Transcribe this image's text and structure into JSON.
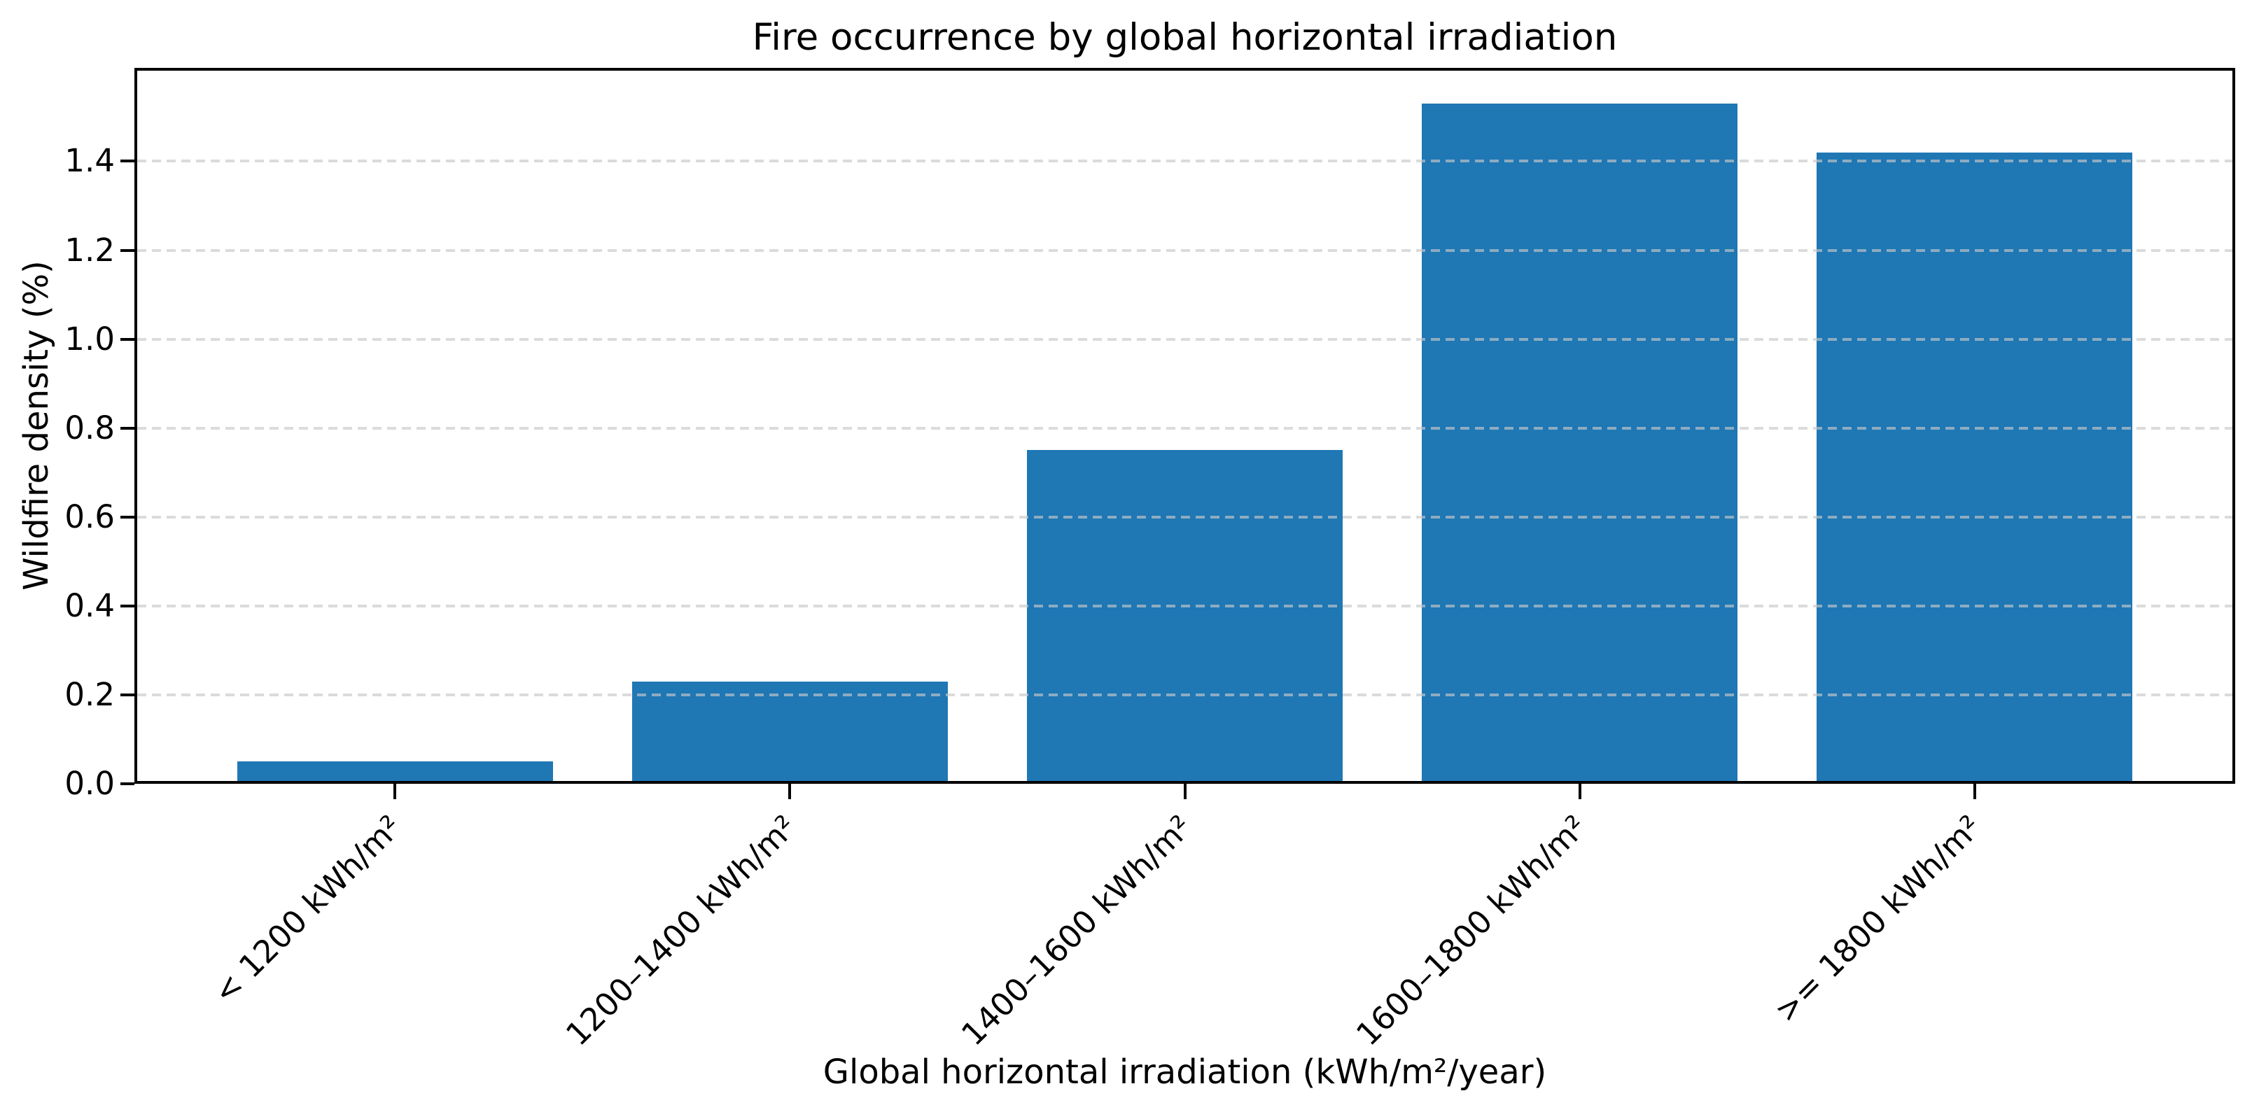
{
  "chart_data": {
    "type": "bar",
    "title": "Fire occurrence by global horizontal irradiation",
    "xlabel": "Global horizontal irradiation (kWh/m²/year)",
    "ylabel": "Wildfire density (%)",
    "categories": [
      "< 1200 kWh/m²",
      "1200–1400 kWh/m²",
      "1400–1600 kWh/m²",
      "1600–1800 kWh/m²",
      ">= 1800 kWh/m²"
    ],
    "values": [
      0.05,
      0.23,
      0.75,
      1.53,
      1.42
    ],
    "yticks": [
      0.0,
      0.2,
      0.4,
      0.6,
      0.8,
      1.0,
      1.2,
      1.4
    ],
    "ytick_labels": [
      "0.0",
      "0.2",
      "0.4",
      "0.6",
      "0.8",
      "1.0",
      "1.2",
      "1.4"
    ],
    "ylim": [
      0,
      1.61
    ],
    "bar_width_fraction": 0.8,
    "grid": "horizontal-dashed",
    "legend": "none",
    "colors": {
      "bar": "#1f77b4",
      "grid": "rgba(200,200,200,0.65)",
      "spine": "#000000",
      "background": "#ffffff",
      "text": "#000000"
    }
  }
}
